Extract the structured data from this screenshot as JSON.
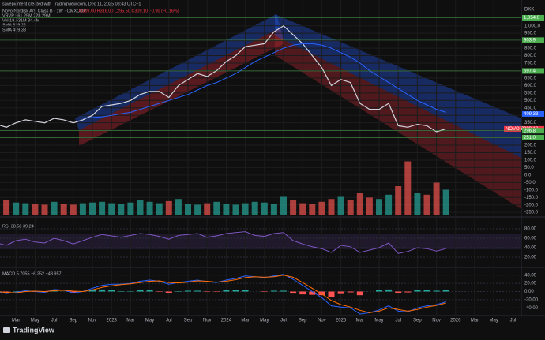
{
  "header": {
    "credit": "savepigment created with TradingView.com, Dec 11, 2025 08:43 UTC+1",
    "symbol": "Novo Nordisk A/S Class B · 1W · OMXCOP",
    "ohlc": "O309.00 H316.00 L295.50 C309.10 −0.90 (−0.16%)",
    "indicators": [
      "VRVP 561.25M 228.29M",
      "Vol 19.531M 34.4M",
      "SMA 529.22",
      "SMA 409.33"
    ]
  },
  "chart_data": [
    {
      "type": "line",
      "currency": "DKK",
      "x": [
        "2022-01",
        "2022-02",
        "2022-03",
        "2022-04",
        "2022-05",
        "2022-06",
        "2022-07",
        "2022-08",
        "2022-09",
        "2022-10",
        "2022-11",
        "2022-12",
        "2023-01",
        "2023-02",
        "2023-03",
        "2023-04",
        "2023-05",
        "2023-06",
        "2023-07",
        "2023-08",
        "2023-09",
        "2023-10",
        "2023-11",
        "2023-12",
        "2024-01",
        "2024-02",
        "2024-03",
        "2024-04",
        "2024-05",
        "2024-06",
        "2024-07",
        "2024-08",
        "2024-09",
        "2024-10",
        "2024-11",
        "2024-12",
        "2025-01",
        "2025-02",
        "2025-03",
        "2025-04",
        "2025-05",
        "2025-06",
        "2025-07",
        "2025-08",
        "2025-09",
        "2025-10",
        "2025-11",
        "2025-12"
      ],
      "series": [
        {
          "name": "NOVO B",
          "color": "#d1d4dc",
          "values": [
            340,
            320,
            350,
            370,
            360,
            350,
            380,
            370,
            350,
            370,
            400,
            460,
            470,
            480,
            500,
            540,
            560,
            560,
            520,
            600,
            640,
            680,
            660,
            700,
            760,
            800,
            860,
            870,
            880,
            960,
            1000,
            940,
            880,
            800,
            720,
            600,
            640,
            620,
            480,
            440,
            440,
            480,
            330,
            320,
            340,
            330,
            290,
            309
          ]
        },
        {
          "color": "#2962ff",
          "values": [
            null,
            null,
            null,
            null,
            null,
            null,
            null,
            null,
            null,
            380,
            385,
            390,
            400,
            410,
            420,
            440,
            460,
            480,
            500,
            520,
            540,
            570,
            600,
            620,
            650,
            680,
            720,
            760,
            790,
            820,
            850,
            870,
            880,
            880,
            870,
            850,
            820,
            790,
            750,
            700,
            660,
            620,
            580,
            540,
            500,
            470,
            440,
            420
          ]
        }
      ],
      "volume": {
        "up_color": "#26a69a",
        "down_color": "#ef5350",
        "values": [
          18,
          20,
          17,
          16,
          15,
          14,
          18,
          15,
          14,
          16,
          17,
          18,
          16,
          15,
          17,
          20,
          18,
          16,
          19,
          22,
          15,
          14,
          16,
          18,
          15,
          14,
          16,
          18,
          17,
          15,
          25,
          20,
          16,
          15,
          18,
          22,
          25,
          20,
          30,
          24,
          22,
          28,
          40,
          75,
          30,
          28,
          45,
          35
        ]
      },
      "ylim": [
        -265,
        1120
      ],
      "yticks": [
        {
          "value": 1000,
          "label": "1,000.0"
        },
        {
          "value": 950,
          "label": "950.0"
        },
        {
          "value": 900,
          "label": "900.0"
        },
        {
          "value": 850,
          "label": "850.0"
        },
        {
          "value": 800,
          "label": "800.0"
        },
        {
          "value": 750,
          "label": "750.0"
        },
        {
          "value": 700,
          "label": "700.0"
        },
        {
          "value": 650,
          "label": "650.0"
        },
        {
          "value": 600,
          "label": "600.0"
        },
        {
          "value": 550,
          "label": "550.0"
        },
        {
          "value": 500,
          "label": "500.0"
        },
        {
          "value": 450,
          "label": "450.0"
        },
        {
          "value": 400,
          "label": "400.0"
        },
        {
          "value": 350,
          "label": "350.0"
        },
        {
          "value": 300,
          "label": "300.0"
        },
        {
          "value": 250,
          "label": "250.0"
        },
        {
          "value": 200,
          "label": "200.0"
        },
        {
          "value": 150,
          "label": "150.0"
        },
        {
          "value": 100,
          "label": "100.0"
        },
        {
          "value": 50,
          "label": "50.0"
        },
        {
          "value": 0,
          "label": "0.0"
        },
        {
          "value": -50,
          "label": "-50.0"
        },
        {
          "value": -100,
          "label": "-100.0"
        },
        {
          "value": -150,
          "label": "-150.0"
        },
        {
          "value": -200,
          "label": "-200.0"
        },
        {
          "value": -250,
          "label": "-250.0"
        }
      ],
      "levels": [
        {
          "value": 1054.0,
          "label": "1,054.0",
          "color": "#4caf50"
        },
        {
          "value": 903.9,
          "label": "903.9",
          "color": "#4caf50"
        },
        {
          "value": 697.4,
          "label": "697.4",
          "color": "#4caf50"
        },
        {
          "value": 409.33,
          "label": "409.33",
          "color": "#2962ff"
        },
        {
          "value": 309.1,
          "label": "309.10",
          "color": "#f23645"
        },
        {
          "value": 296.8,
          "label": "296.8",
          "color": "#4caf50"
        },
        {
          "value": 251.0,
          "label": "251.0",
          "color": "#4caf50"
        }
      ],
      "xticks": [
        {
          "value": "2022-03",
          "label": "Mar"
        },
        {
          "value": "2022-05",
          "label": "May"
        },
        {
          "value": "2022-07",
          "label": "Jul"
        },
        {
          "value": "2022-09",
          "label": "Sep"
        },
        {
          "value": "2022-11",
          "label": "Nov"
        },
        {
          "value": "2023-01",
          "label": "2023"
        },
        {
          "value": "2023-03",
          "label": "Mar"
        },
        {
          "value": "2023-05",
          "label": "May"
        },
        {
          "value": "2023-07",
          "label": "Jul"
        },
        {
          "value": "2023-09",
          "label": "Sep"
        },
        {
          "value": "2023-11",
          "label": "Nov"
        },
        {
          "value": "2024-01",
          "label": "2024"
        },
        {
          "value": "2024-03",
          "label": "Mar"
        },
        {
          "value": "2024-05",
          "label": "May"
        },
        {
          "value": "2024-07",
          "label": "Jul"
        },
        {
          "value": "2024-09",
          "label": "Sep"
        },
        {
          "value": "2024-11",
          "label": "Nov"
        },
        {
          "value": "2025-01",
          "label": "2025"
        },
        {
          "value": "2025-03",
          "label": "Mar"
        },
        {
          "value": "2025-05",
          "label": "May"
        },
        {
          "value": "2025-07",
          "label": "Jul"
        },
        {
          "value": "2025-09",
          "label": "Sep"
        },
        {
          "value": "2025-11",
          "label": "Nov"
        },
        {
          "value": "2026-01",
          "label": "2026"
        },
        {
          "value": "2026-03",
          "label": "Mar"
        },
        {
          "value": "2026-05",
          "label": "May"
        },
        {
          "value": "2026-07",
          "label": "Jul"
        }
      ],
      "grid": true
    },
    {
      "type": "line",
      "title": "RSI 38.58 39.24",
      "color": "#7e57c2",
      "values": [
        50,
        45,
        55,
        58,
        52,
        50,
        60,
        55,
        48,
        55,
        62,
        68,
        65,
        62,
        66,
        70,
        68,
        64,
        58,
        66,
        68,
        70,
        62,
        65,
        70,
        72,
        74,
        66,
        64,
        70,
        72,
        55,
        48,
        42,
        38,
        30,
        45,
        42,
        30,
        35,
        40,
        50,
        28,
        32,
        40,
        38,
        33,
        38
      ],
      "ylim": [
        0,
        100
      ],
      "yticks": [
        {
          "value": 80,
          "label": "80.00"
        },
        {
          "value": 60,
          "label": "60.00"
        },
        {
          "value": 40,
          "label": "40.00"
        },
        {
          "value": 20,
          "label": "20.00"
        }
      ]
    },
    {
      "type": "macd",
      "title": "MACD 5.7055 −6.252 −43.957",
      "macd": {
        "color": "#2962ff",
        "values": [
          0,
          -5,
          -2,
          2,
          0,
          -2,
          5,
          3,
          -3,
          0,
          8,
          15,
          18,
          18,
          20,
          25,
          28,
          25,
          18,
          22,
          25,
          28,
          24,
          22,
          28,
          32,
          38,
          36,
          34,
          38,
          42,
          30,
          15,
          0,
          -15,
          -35,
          -38,
          -40,
          -55,
          -52,
          -45,
          -35,
          -48,
          -50,
          -40,
          -35,
          -32,
          -25
        ]
      },
      "signal": {
        "color": "#ff6d00",
        "values": [
          0,
          -2,
          -3,
          0,
          1,
          0,
          2,
          3,
          1,
          0,
          4,
          10,
          14,
          17,
          19,
          22,
          25,
          26,
          22,
          21,
          23,
          26,
          25,
          23,
          25,
          29,
          34,
          36,
          35,
          36,
          40,
          35,
          22,
          8,
          -6,
          -22,
          -32,
          -38,
          -46,
          -52,
          -48,
          -40,
          -44,
          -48,
          -44,
          -38,
          -34,
          -28
        ]
      },
      "histogram": {
        "up_color": "#26a69a",
        "down_color": "#ff5252",
        "values": [
          0,
          -3,
          1,
          2,
          -1,
          -2,
          3,
          0,
          -4,
          0,
          4,
          5,
          4,
          1,
          1,
          3,
          3,
          -1,
          -4,
          1,
          2,
          2,
          -1,
          -1,
          3,
          3,
          4,
          0,
          -1,
          2,
          2,
          -5,
          -7,
          -8,
          -9,
          -13,
          -6,
          -2,
          -9,
          0,
          3,
          5,
          -4,
          -2,
          4,
          3,
          2,
          3
        ]
      },
      "ylim": [
        -55,
        55
      ],
      "yticks": [
        {
          "value": 40,
          "label": "40.00"
        },
        {
          "value": 20,
          "label": "20.00"
        },
        {
          "value": 0,
          "label": "0.00"
        },
        {
          "value": -20,
          "label": "-20.00"
        },
        {
          "value": -40,
          "label": "-40.00"
        }
      ]
    }
  ],
  "footer": {
    "brand": "TradingView"
  }
}
